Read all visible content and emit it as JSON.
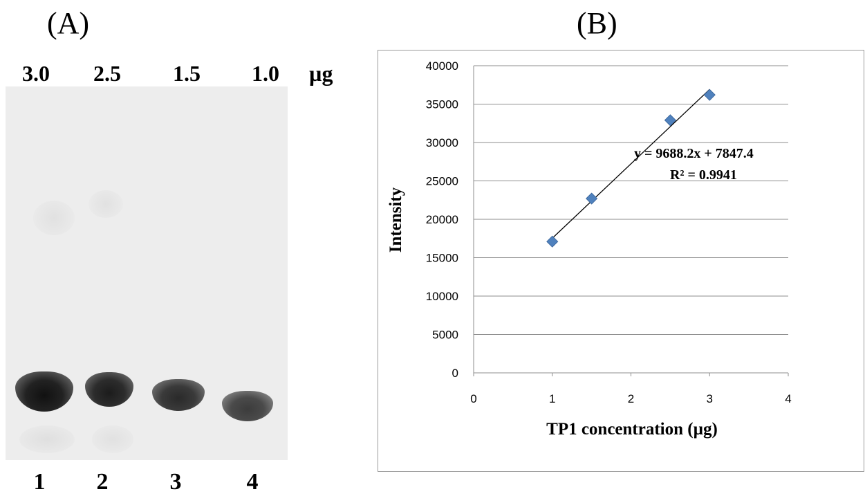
{
  "panel_a": {
    "label": "(A)",
    "amount_labels": [
      "3.0",
      "2.5",
      "1.5",
      "1.0"
    ],
    "unit": "µg",
    "lane_labels": [
      "1",
      "2",
      "3",
      "4"
    ]
  },
  "panel_b": {
    "label": "(B)"
  },
  "chart_data": {
    "type": "scatter",
    "x": [
      1.0,
      1.5,
      2.5,
      3.0
    ],
    "y": [
      17100,
      22700,
      32900,
      36200
    ],
    "xlabel": "TP1 concentration (µg)",
    "ylabel": "Intensity",
    "xlim": [
      0,
      4
    ],
    "ylim": [
      0,
      40000
    ],
    "x_ticks": [
      "0",
      "1",
      "2",
      "3",
      "4"
    ],
    "y_ticks": [
      "0",
      "5000",
      "10000",
      "15000",
      "20000",
      "25000",
      "30000",
      "35000",
      "40000"
    ],
    "grid": "horizontal",
    "marker_color": "#4f81bd",
    "trendline": {
      "slope": 9688.2,
      "intercept": 7847.4,
      "x_range": [
        1,
        3
      ]
    },
    "equation": "y = 9688.2x + 7847.4",
    "r_squared": "R² = 0.9941"
  }
}
